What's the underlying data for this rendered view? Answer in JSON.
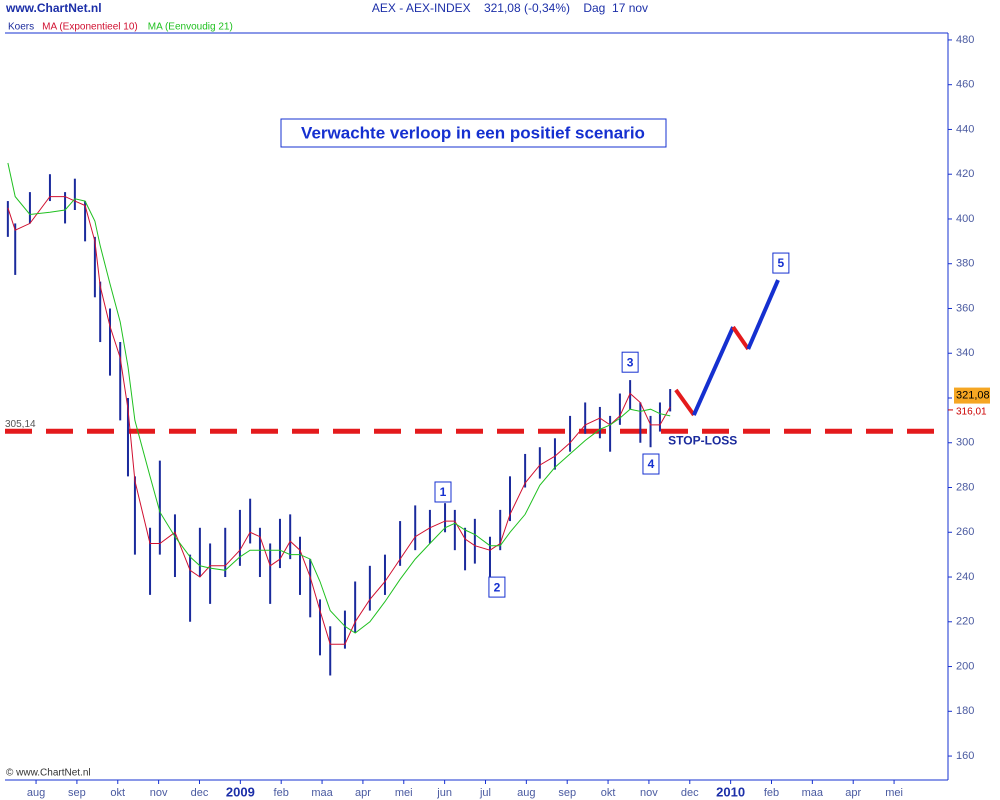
{
  "chart_data": {
    "type": "ohlc",
    "site": "www.ChartNet.nl",
    "title": "AEX - AEX-INDEX    321,08 (-0,34%)    Dag  17 nov",
    "copyright": "© www.ChartNet.nl",
    "annotation_box": "Verwachte verloop in een positief scenario",
    "xlim": [
      -0.76,
      22.32
    ],
    "xticks": [
      {
        "value": 0,
        "label": "aug"
      },
      {
        "value": 1,
        "label": "sep"
      },
      {
        "value": 2,
        "label": "okt"
      },
      {
        "value": 3,
        "label": "nov"
      },
      {
        "value": 4,
        "label": "dec"
      },
      {
        "value": 5,
        "label": "2009"
      },
      {
        "value": 6,
        "label": "feb"
      },
      {
        "value": 7,
        "label": "maa"
      },
      {
        "value": 8,
        "label": "apr"
      },
      {
        "value": 9,
        "label": "mei"
      },
      {
        "value": 10,
        "label": "jun"
      },
      {
        "value": 11,
        "label": "jul"
      },
      {
        "value": 12,
        "label": "aug"
      },
      {
        "value": 13,
        "label": "sep"
      },
      {
        "value": 14,
        "label": "okt"
      },
      {
        "value": 15,
        "label": "nov"
      },
      {
        "value": 16,
        "label": "dec"
      },
      {
        "value": 17,
        "label": "2010"
      },
      {
        "value": 18,
        "label": "feb"
      },
      {
        "value": 19,
        "label": "maa"
      },
      {
        "value": 20,
        "label": "apr"
      },
      {
        "value": 21,
        "label": "mei"
      }
    ],
    "ylim": [
      149.3,
      483.1
    ],
    "yticks": [
      160,
      180,
      200,
      220,
      240,
      260,
      280,
      300,
      320,
      340,
      360,
      380,
      400,
      420,
      440,
      460,
      480
    ],
    "x": [
      -0.69,
      -0.51,
      -0.15,
      0.34,
      0.71,
      0.95,
      1.2,
      1.44,
      1.57,
      1.81,
      2.06,
      2.25,
      2.42,
      2.79,
      3.03,
      3.4,
      3.77,
      4.01,
      4.26,
      4.63,
      4.99,
      5.24,
      5.48,
      5.73,
      5.97,
      6.22,
      6.46,
      6.71,
      6.95,
      7.2,
      7.56,
      7.81,
      8.17,
      8.54,
      8.91,
      9.28,
      9.64,
      10.01,
      10.25,
      10.5,
      10.74,
      11.11,
      11.36,
      11.6,
      11.97,
      12.33,
      12.7,
      13.07,
      13.44,
      13.8,
      14.05,
      14.29,
      14.54,
      14.79,
      15.04,
      15.27,
      15.52
    ],
    "price": {
      "name": "Koers",
      "color": "#1a2a9c",
      "high": [
        408,
        398,
        412,
        420,
        412,
        418,
        408,
        392,
        372,
        360,
        345,
        320,
        285,
        262,
        292,
        268,
        250,
        262,
        255,
        262,
        270,
        275,
        262,
        255,
        266,
        268,
        258,
        248,
        230,
        218,
        225,
        238,
        245,
        250,
        265,
        272,
        270,
        273,
        270,
        262,
        266,
        258,
        270,
        285,
        295,
        298,
        302,
        312,
        318,
        316,
        312,
        322,
        328,
        318,
        312,
        318,
        324
      ],
      "low": [
        392,
        375,
        398,
        408,
        398,
        404,
        390,
        365,
        345,
        330,
        310,
        285,
        250,
        232,
        250,
        240,
        220,
        240,
        228,
        240,
        245,
        255,
        240,
        228,
        244,
        248,
        232,
        222,
        205,
        196,
        208,
        215,
        225,
        232,
        245,
        252,
        255,
        260,
        252,
        243,
        246,
        240,
        252,
        265,
        280,
        284,
        288,
        296,
        304,
        302,
        296,
        308,
        315,
        300,
        298,
        305,
        314
      ]
    },
    "series": [
      {
        "name": "MA (Exponentieel 10)",
        "color": "#d01030",
        "values": [
          405,
          395,
          398,
          410,
          410,
          408,
          406,
          390,
          370,
          352,
          338,
          315,
          283,
          255,
          255,
          260,
          243,
          240,
          245,
          245,
          252,
          260,
          258,
          245,
          248,
          256,
          252,
          240,
          225,
          210,
          210,
          220,
          230,
          238,
          248,
          258,
          262,
          265,
          265,
          257,
          254,
          252,
          255,
          268,
          282,
          290,
          294,
          300,
          308,
          311,
          308,
          312,
          322,
          318,
          308,
          308,
          316
        ]
      },
      {
        "name": "MA (Eenvoudig 21)",
        "color": "#20c020",
        "values": [
          425,
          410,
          402,
          403,
          404,
          409,
          408,
          399,
          388,
          371,
          354,
          334,
          310,
          285,
          269,
          258,
          249,
          245,
          244,
          243,
          249,
          252,
          252,
          252,
          252,
          250,
          250,
          248,
          238,
          225,
          218,
          215,
          220,
          229,
          239,
          248,
          255,
          262,
          264,
          261,
          259,
          254,
          254,
          260,
          268,
          281,
          289,
          295,
          301,
          306,
          308,
          311,
          315,
          314,
          315,
          313,
          312
        ]
      }
    ],
    "stop_loss": {
      "value": 305.14,
      "label": "305,14",
      "text": "STOP-LOSS",
      "color": "#e41a1c"
    },
    "last_labels": [
      {
        "value": 321.08,
        "label": "321,08",
        "color": "#f5a623"
      },
      {
        "value": 316.01,
        "label": "316,01",
        "color": "#cc0000"
      }
    ],
    "scenario": {
      "x": [
        15.66,
        16.1,
        17.06,
        17.43,
        18.16
      ],
      "values": [
        323.6,
        312.4,
        351.7,
        341.9,
        372.7
      ],
      "segment_colors": [
        "#e41a1c",
        "#1530d0",
        "#e41a1c",
        "#1530d0"
      ]
    },
    "waves": [
      {
        "text": "1",
        "x": 9.96,
        "y": 278
      },
      {
        "text": "2",
        "x": 11.28,
        "y": 235.5
      },
      {
        "text": "3",
        "x": 14.54,
        "y": 336
      },
      {
        "text": "4",
        "x": 15.05,
        "y": 290.5
      },
      {
        "text": "5",
        "x": 18.23,
        "y": 380.3
      }
    ]
  }
}
